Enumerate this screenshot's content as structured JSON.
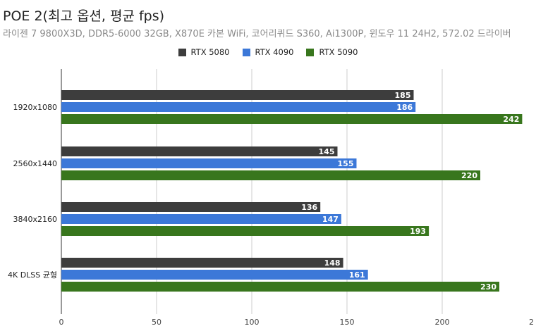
{
  "chart_data": {
    "type": "bar",
    "orientation": "horizontal",
    "title": "POE 2(최고 옵션, 평균 fps)",
    "subtitle": "라이젠 7 9800X3D, DDR5-6000 32GB, X870E 카본 WiFi, 코어리퀴드 S360, Ai1300P, 윈도우 11 24H2, 572.02 드라이버",
    "categories": [
      "1920x1080",
      "2560x1440",
      "3840x2160",
      "4K DLSS 균형"
    ],
    "series": [
      {
        "name": "RTX 5080",
        "color": "#3d3d3d",
        "values": [
          185,
          145,
          136,
          148
        ]
      },
      {
        "name": "RTX 4090",
        "color": "#3c78d8",
        "values": [
          186,
          155,
          147,
          161
        ]
      },
      {
        "name": "RTX 5090",
        "color": "#38761d",
        "values": [
          242,
          220,
          193,
          230
        ]
      }
    ],
    "xlim": [
      0,
      250
    ],
    "xticks": [
      "0",
      "50",
      "100",
      "150",
      "200",
      "2"
    ],
    "legend_position": "top",
    "grid": true
  }
}
